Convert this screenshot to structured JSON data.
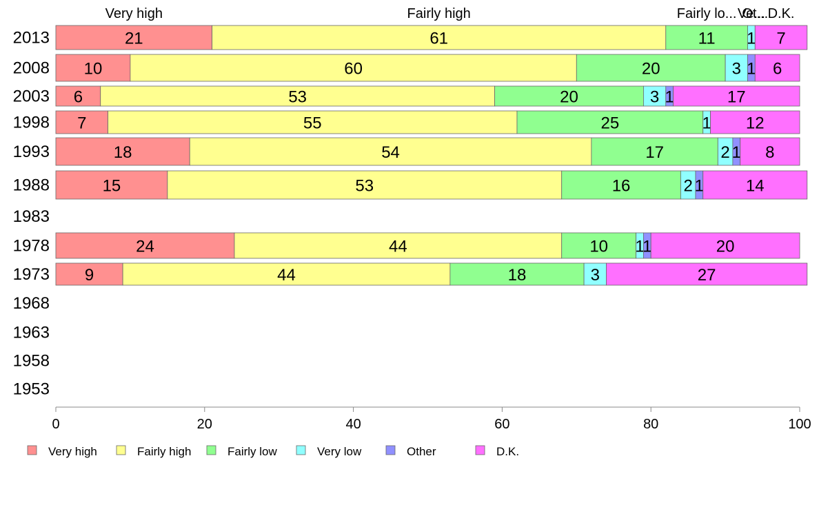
{
  "chart_data": {
    "type": "bar",
    "orientation": "horizontal",
    "stacked": true,
    "categories": [
      "2013",
      "2008",
      "2003",
      "1998",
      "1993",
      "1988",
      "1983",
      "1978",
      "1973",
      "1968",
      "1963",
      "1958",
      "1953"
    ],
    "xlim": [
      0,
      100
    ],
    "xticks": [
      "0",
      "20",
      "40",
      "60",
      "80",
      "100"
    ],
    "grid": false,
    "legend_position": "bottom",
    "top_labels": [
      "Very high",
      "Fairly high",
      "Fairly lo...",
      "Ve...",
      "Ot...",
      "D.K."
    ],
    "series": [
      {
        "name": "Very high",
        "color": "#ff9090",
        "values": [
          21,
          10,
          6,
          7,
          18,
          15,
          null,
          24,
          9,
          null,
          null,
          null,
          null
        ]
      },
      {
        "name": "Fairly high",
        "color": "#ffff90",
        "values": [
          61,
          60,
          53,
          55,
          54,
          53,
          null,
          44,
          44,
          null,
          null,
          null,
          null
        ]
      },
      {
        "name": "Fairly low",
        "color": "#90ff90",
        "values": [
          11,
          20,
          20,
          25,
          17,
          16,
          null,
          10,
          18,
          null,
          null,
          null,
          null
        ]
      },
      {
        "name": "Very low",
        "color": "#90ffff",
        "values": [
          1,
          3,
          3,
          1,
          2,
          2,
          null,
          1,
          3,
          null,
          null,
          null,
          null
        ]
      },
      {
        "name": "Other",
        "color": "#9090ff",
        "values": [
          0,
          1,
          1,
          0,
          1,
          1,
          null,
          1,
          0,
          null,
          null,
          null,
          null
        ]
      },
      {
        "name": "D.K.",
        "color": "#ff70ff",
        "values": [
          7,
          6,
          17,
          12,
          8,
          14,
          null,
          20,
          27,
          null,
          null,
          null,
          null
        ]
      }
    ],
    "segment_labels": [
      [
        "21",
        "61",
        "11",
        "1",
        "",
        "7"
      ],
      [
        "10",
        "60",
        "20",
        "3",
        "1",
        "6"
      ],
      [
        "6",
        "53",
        "20",
        "3",
        "1",
        "17"
      ],
      [
        "7",
        "55",
        "25",
        "1",
        "",
        "12"
      ],
      [
        "18",
        "54",
        "17",
        "2",
        "1",
        "8"
      ],
      [
        "15",
        "53",
        "16",
        "2",
        "1",
        "14"
      ],
      [],
      [
        "24",
        "44",
        "10",
        "1",
        "1",
        "20"
      ],
      [
        "9",
        "44",
        "18",
        "3",
        "",
        "27"
      ],
      [],
      [],
      [],
      []
    ]
  }
}
